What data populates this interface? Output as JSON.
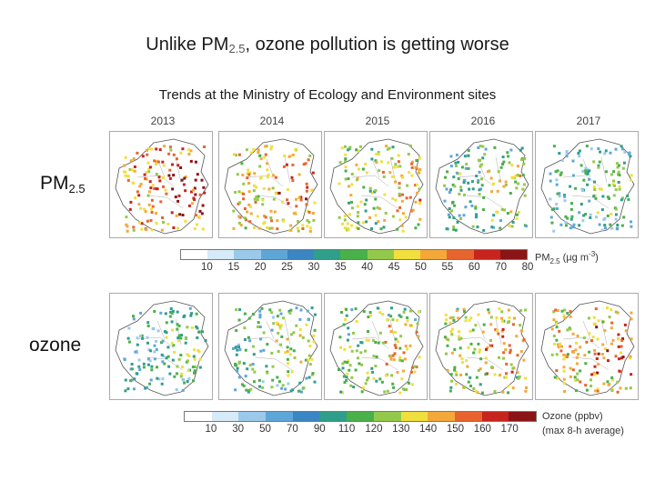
{
  "title": {
    "prefix": "Unlike PM",
    "sub": "2.5",
    "suffix": ", ozone pollution is getting worse"
  },
  "subtitle": "Trends at the Ministry of Ecology and Environment sites",
  "years": [
    "2013",
    "2014",
    "2015",
    "2016",
    "2017"
  ],
  "rows": [
    {
      "label_main": "PM",
      "label_sub": "2.5"
    },
    {
      "label_main": "ozone",
      "label_sub": ""
    }
  ],
  "pm_colorbar": {
    "ticks": [
      "10",
      "15",
      "20",
      "25",
      "30",
      "35",
      "40",
      "45",
      "50",
      "55",
      "60",
      "70",
      "80"
    ],
    "unit_main": "PM",
    "unit_sub": "2.5",
    "unit_open": " (µg m",
    "unit_sup": "-3",
    "unit_close": ")",
    "colors": [
      "#ffffff",
      "#d6eaf8",
      "#9cc9ea",
      "#5fa6d8",
      "#3a86c2",
      "#2f9e8a",
      "#49b04a",
      "#93c94a",
      "#f0df3c",
      "#f4a83a",
      "#e8642f",
      "#c8241e",
      "#8a1416"
    ]
  },
  "ozone_colorbar": {
    "ticks": [
      "10",
      "30",
      "50",
      "70",
      "90",
      "110",
      "120",
      "130",
      "140",
      "150",
      "160",
      "170"
    ],
    "unit_line1": "Ozone (ppbv)",
    "unit_line2": "(max 8-h average)",
    "colors": [
      "#ffffff",
      "#d6eaf8",
      "#9cc9ea",
      "#5fa6d8",
      "#3a86c2",
      "#2f9e8a",
      "#49b04a",
      "#93c94a",
      "#f0df3c",
      "#f4a83a",
      "#e8642f",
      "#c8241e",
      "#8a1416"
    ]
  }
}
